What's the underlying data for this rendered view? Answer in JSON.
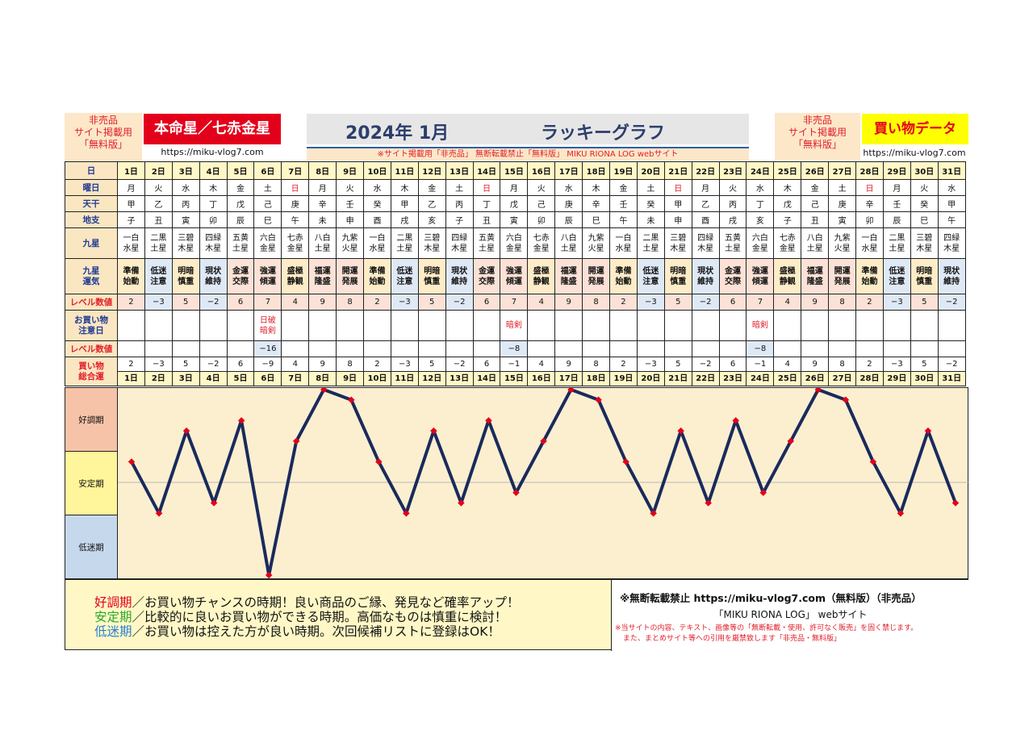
{
  "header": {
    "note_left": [
      "非売品",
      "サイト掲載用",
      "「無料版」"
    ],
    "star_title": "本命星／七赤金星",
    "url_left": "https://miku-vlog7.com",
    "year_month": "2024年 1月",
    "graph_title": "ラッキーグラフ",
    "notice": "※サイト掲載用「非売品」 無断転載禁止「無料版」 MIKU RIONA LOG webサイト",
    "note_right": [
      "非売品",
      "サイト掲載用",
      "「無料版」"
    ],
    "category_title": "買い物データ",
    "url_right": "https://miku-vlog7.com",
    "colors": {
      "red": "#e3001b",
      "yellow": "#ffff00",
      "peach": "#fde7c9"
    }
  },
  "row_labels": {
    "day": "日",
    "weekday": "曜日",
    "tenkan": "天干",
    "chishi": "地支",
    "kyusei": "九星",
    "fortune": [
      "九星",
      "運気"
    ],
    "level": "レベル数値",
    "caution": [
      "お買い物",
      "注意日"
    ],
    "level2": "レベル数値",
    "total": [
      "買い物",
      "総合運"
    ]
  },
  "days": [
    {
      "d": "1日",
      "w": "月",
      "t": "甲",
      "c": "子",
      "k": [
        "一白",
        "水星"
      ],
      "f": [
        "準備",
        "始動"
      ],
      "lv": "2",
      "tot": "2"
    },
    {
      "d": "2日",
      "w": "火",
      "t": "乙",
      "c": "丑",
      "k": [
        "二黒",
        "土星"
      ],
      "f": [
        "低迷",
        "注意"
      ],
      "lv": "−3",
      "tot": "−3"
    },
    {
      "d": "3日",
      "w": "水",
      "t": "丙",
      "c": "寅",
      "k": [
        "三碧",
        "木星"
      ],
      "f": [
        "明暗",
        "慎重"
      ],
      "lv": "5",
      "tot": "5"
    },
    {
      "d": "4日",
      "w": "木",
      "t": "丁",
      "c": "卯",
      "k": [
        "四緑",
        "木星"
      ],
      "f": [
        "現状",
        "維持"
      ],
      "lv": "−2",
      "tot": "−2"
    },
    {
      "d": "5日",
      "w": "金",
      "t": "戊",
      "c": "辰",
      "k": [
        "五黄",
        "土星"
      ],
      "f": [
        "金運",
        "交際"
      ],
      "lv": "6",
      "tot": "6"
    },
    {
      "d": "6日",
      "w": "土",
      "t": "己",
      "c": "巳",
      "k": [
        "六白",
        "金星"
      ],
      "f": [
        "強運",
        "傾運"
      ],
      "lv": "7",
      "cau": [
        "日破",
        "暗剣"
      ],
      "lv2": "−16",
      "tot": "−9"
    },
    {
      "d": "7日",
      "w": "日",
      "t": "庚",
      "c": "午",
      "k": [
        "七赤",
        "金星"
      ],
      "f": [
        "盛極",
        "静観"
      ],
      "lv": "4",
      "tot": "4"
    },
    {
      "d": "8日",
      "w": "月",
      "t": "辛",
      "c": "未",
      "k": [
        "八白",
        "土星"
      ],
      "f": [
        "福運",
        "隆盛"
      ],
      "lv": "9",
      "tot": "9"
    },
    {
      "d": "9日",
      "w": "火",
      "t": "壬",
      "c": "申",
      "k": [
        "九紫",
        "火星"
      ],
      "f": [
        "開運",
        "発展"
      ],
      "lv": "8",
      "tot": "8"
    },
    {
      "d": "10日",
      "w": "水",
      "t": "癸",
      "c": "酉",
      "k": [
        "一白",
        "水星"
      ],
      "f": [
        "準備",
        "始動"
      ],
      "lv": "2",
      "tot": "2"
    },
    {
      "d": "11日",
      "w": "木",
      "t": "甲",
      "c": "戌",
      "k": [
        "二黒",
        "土星"
      ],
      "f": [
        "低迷",
        "注意"
      ],
      "lv": "−3",
      "tot": "−3"
    },
    {
      "d": "12日",
      "w": "金",
      "t": "乙",
      "c": "亥",
      "k": [
        "三碧",
        "木星"
      ],
      "f": [
        "明暗",
        "慎重"
      ],
      "lv": "5",
      "tot": "5"
    },
    {
      "d": "13日",
      "w": "土",
      "t": "丙",
      "c": "子",
      "k": [
        "四緑",
        "木星"
      ],
      "f": [
        "現状",
        "維持"
      ],
      "lv": "−2",
      "tot": "−2"
    },
    {
      "d": "14日",
      "w": "日",
      "t": "丁",
      "c": "丑",
      "k": [
        "五黄",
        "土星"
      ],
      "f": [
        "金運",
        "交際"
      ],
      "lv": "6",
      "tot": "6"
    },
    {
      "d": "15日",
      "w": "月",
      "t": "戊",
      "c": "寅",
      "k": [
        "六白",
        "金星"
      ],
      "f": [
        "強運",
        "傾運"
      ],
      "lv": "7",
      "cau": [
        "暗剣"
      ],
      "lv2": "−8",
      "tot": "−1"
    },
    {
      "d": "16日",
      "w": "火",
      "t": "己",
      "c": "卯",
      "k": [
        "七赤",
        "金星"
      ],
      "f": [
        "盛極",
        "静観"
      ],
      "lv": "4",
      "tot": "4"
    },
    {
      "d": "17日",
      "w": "水",
      "t": "庚",
      "c": "辰",
      "k": [
        "八白",
        "土星"
      ],
      "f": [
        "福運",
        "隆盛"
      ],
      "lv": "9",
      "tot": "9"
    },
    {
      "d": "18日",
      "w": "木",
      "t": "辛",
      "c": "巳",
      "k": [
        "九紫",
        "火星"
      ],
      "f": [
        "開運",
        "発展"
      ],
      "lv": "8",
      "tot": "8"
    },
    {
      "d": "19日",
      "w": "金",
      "t": "壬",
      "c": "午",
      "k": [
        "一白",
        "水星"
      ],
      "f": [
        "準備",
        "始動"
      ],
      "lv": "2",
      "tot": "2"
    },
    {
      "d": "20日",
      "w": "土",
      "t": "癸",
      "c": "未",
      "k": [
        "二黒",
        "土星"
      ],
      "f": [
        "低迷",
        "注意"
      ],
      "lv": "−3",
      "tot": "−3"
    },
    {
      "d": "21日",
      "w": "日",
      "t": "甲",
      "c": "申",
      "k": [
        "三碧",
        "木星"
      ],
      "f": [
        "明暗",
        "慎重"
      ],
      "lv": "5",
      "tot": "5"
    },
    {
      "d": "22日",
      "w": "月",
      "t": "乙",
      "c": "酉",
      "k": [
        "四緑",
        "木星"
      ],
      "f": [
        "現状",
        "維持"
      ],
      "lv": "−2",
      "tot": "−2"
    },
    {
      "d": "23日",
      "w": "火",
      "t": "丙",
      "c": "戌",
      "k": [
        "五黄",
        "土星"
      ],
      "f": [
        "金運",
        "交際"
      ],
      "lv": "6",
      "tot": "6"
    },
    {
      "d": "24日",
      "w": "水",
      "t": "丁",
      "c": "亥",
      "k": [
        "六白",
        "金星"
      ],
      "f": [
        "強運",
        "傾運"
      ],
      "lv": "7",
      "cau": [
        "暗剣"
      ],
      "lv2": "−8",
      "tot": "−1"
    },
    {
      "d": "25日",
      "w": "木",
      "t": "戊",
      "c": "子",
      "k": [
        "七赤",
        "金星"
      ],
      "f": [
        "盛極",
        "静観"
      ],
      "lv": "4",
      "tot": "4"
    },
    {
      "d": "26日",
      "w": "金",
      "t": "己",
      "c": "丑",
      "k": [
        "八白",
        "土星"
      ],
      "f": [
        "福運",
        "隆盛"
      ],
      "lv": "9",
      "tot": "9"
    },
    {
      "d": "27日",
      "w": "土",
      "t": "庚",
      "c": "寅",
      "k": [
        "九紫",
        "火星"
      ],
      "f": [
        "開運",
        "発展"
      ],
      "lv": "8",
      "tot": "8"
    },
    {
      "d": "28日",
      "w": "日",
      "t": "辛",
      "c": "卯",
      "k": [
        "一白",
        "水星"
      ],
      "f": [
        "準備",
        "始動"
      ],
      "lv": "2",
      "tot": "2"
    },
    {
      "d": "29日",
      "w": "月",
      "t": "壬",
      "c": "辰",
      "k": [
        "二黒",
        "土星"
      ],
      "f": [
        "低迷",
        "注意"
      ],
      "lv": "−3",
      "tot": "−3"
    },
    {
      "d": "30日",
      "w": "火",
      "t": "癸",
      "c": "巳",
      "k": [
        "三碧",
        "木星"
      ],
      "f": [
        "明暗",
        "慎重"
      ],
      "lv": "5",
      "tot": "5"
    },
    {
      "d": "31日",
      "w": "水",
      "t": "甲",
      "c": "午",
      "k": [
        "四緑",
        "木星"
      ],
      "f": [
        "現状",
        "維持"
      ],
      "lv": "−2",
      "tot": "−2"
    }
  ],
  "chart_data": {
    "type": "line",
    "x": [
      "1日",
      "2日",
      "3日",
      "4日",
      "5日",
      "6日",
      "7日",
      "8日",
      "9日",
      "10日",
      "11日",
      "12日",
      "13日",
      "14日",
      "15日",
      "16日",
      "17日",
      "18日",
      "19日",
      "20日",
      "21日",
      "22日",
      "23日",
      "24日",
      "25日",
      "26日",
      "27日",
      "28日",
      "29日",
      "30日",
      "31日"
    ],
    "series": [
      {
        "values": [
          2,
          -3,
          5,
          -2,
          6,
          -9,
          4,
          9,
          8,
          2,
          -3,
          5,
          -2,
          6,
          -1,
          4,
          9,
          8,
          2,
          -3,
          5,
          -2,
          6,
          -1,
          4,
          9,
          8,
          2,
          -3,
          5,
          -2
        ]
      }
    ],
    "ylim": [
      -9,
      9
    ],
    "zones": [
      "好調期",
      "安定期",
      "低迷期"
    ],
    "line_color": "#1a2a5c",
    "marker_color": "#e3001b",
    "grid": false
  },
  "footer": {
    "legend": [
      {
        "key": "好調期",
        "text": "／お買い物チャンスの時期！良い商品のご縁、発見など確率アップ！",
        "color": "#e3001b"
      },
      {
        "key": "安定期",
        "text": "／比較的に良いお買い物ができる時期。高価なものは慎重に検討！",
        "color": "#2aa82a"
      },
      {
        "key": "低迷期",
        "text": "／お買い物は控えた方が良い時期。次回候補リストに登録はOK！",
        "color": "#2a7fd0"
      }
    ],
    "copyright": "※無断転載禁止 https://miku-vlog7.com（無料版）（非売品）",
    "site": "「MIKU RIONA LOG」 webサイト",
    "warning1": "※当サイトの内容、テキスト、画像等の「無断転載・使用、許可なく販売」を固く禁じます。",
    "warning2": "また、まとめサイト等への引用を厳禁致します「非売品・無料版」"
  }
}
